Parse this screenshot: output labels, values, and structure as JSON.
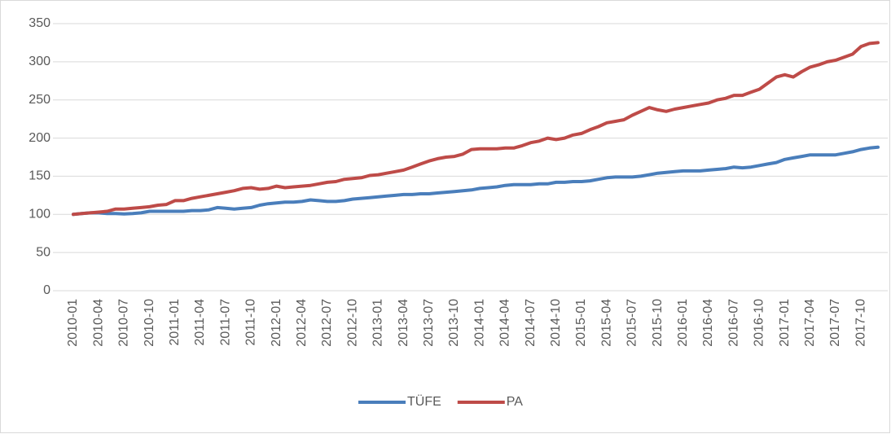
{
  "chart_data": {
    "type": "line",
    "categories": [
      "2010-01",
      null,
      null,
      "2010-04",
      null,
      null,
      "2010-07",
      null,
      null,
      "2010-10",
      null,
      null,
      "2011-01",
      null,
      null,
      "2011-04",
      null,
      null,
      "2011-07",
      null,
      null,
      "2011-10",
      null,
      null,
      "2012-01",
      null,
      null,
      "2012-04",
      null,
      null,
      "2012-07",
      null,
      null,
      "2012-10",
      null,
      null,
      "2013-01",
      null,
      null,
      "2013-04",
      null,
      null,
      "2013-07",
      null,
      null,
      "2013-10",
      null,
      null,
      "2014-01",
      null,
      null,
      "2014-04",
      null,
      null,
      "2014-07",
      null,
      null,
      "2014-10",
      null,
      null,
      "2015-01",
      null,
      null,
      "2015-04",
      null,
      null,
      "2015-07",
      null,
      null,
      "2015-10",
      null,
      null,
      "2016-01",
      null,
      null,
      "2016-04",
      null,
      null,
      "2016-07",
      null,
      null,
      "2016-10",
      null,
      null,
      "2017-01",
      null,
      null,
      "2017-04",
      null,
      null,
      "2017-07",
      null,
      null,
      "2017-10",
      null,
      null
    ],
    "series": [
      {
        "name": "TÜFE",
        "color": "#4a7ebb",
        "values": [
          100,
          101,
          102,
          102,
          101,
          101,
          100.5,
          101,
          102,
          104,
          104,
          104,
          104,
          104,
          105,
          105,
          106,
          109,
          108,
          107,
          108,
          109,
          112,
          114,
          115,
          116,
          116,
          117,
          119,
          118,
          117,
          117,
          118,
          120,
          121,
          122,
          123,
          124,
          125,
          126,
          126,
          127,
          127,
          128,
          129,
          130,
          131,
          132,
          134,
          135,
          136,
          138,
          139,
          139,
          139,
          140,
          140,
          142,
          142,
          143,
          143,
          144,
          146,
          148,
          149,
          149,
          149,
          150,
          152,
          154,
          155,
          156,
          157,
          157,
          157,
          158,
          159,
          160,
          162,
          161,
          162,
          164,
          166,
          168,
          172,
          174,
          176,
          178,
          178,
          178,
          178,
          180,
          182,
          185,
          187,
          188
        ]
      },
      {
        "name": "PA",
        "color": "#be4b48",
        "values": [
          100,
          101,
          102,
          103,
          104,
          107,
          107,
          108,
          109,
          110,
          112,
          113,
          118,
          118,
          121,
          123,
          125,
          127,
          129,
          131,
          134,
          135,
          133,
          134,
          137,
          135,
          136,
          137,
          138,
          140,
          142,
          143,
          146,
          147,
          148,
          151,
          152,
          154,
          156,
          158,
          162,
          166,
          170,
          173,
          175,
          176,
          179,
          185,
          186,
          186,
          186,
          187,
          187,
          190,
          194,
          196,
          200,
          198,
          200,
          204,
          206,
          211,
          215,
          220,
          222,
          224,
          230,
          235,
          240,
          237,
          235,
          238,
          240,
          242,
          244,
          246,
          250,
          252,
          256,
          256,
          260,
          264,
          272,
          280,
          283,
          280,
          287,
          293,
          296,
          300,
          302,
          306,
          310,
          320,
          324,
          325
        ]
      }
    ],
    "ylim": [
      0,
      350
    ],
    "yticks": [
      0,
      50,
      100,
      150,
      200,
      250,
      300,
      350
    ],
    "grid": true,
    "legend": "bottom"
  }
}
